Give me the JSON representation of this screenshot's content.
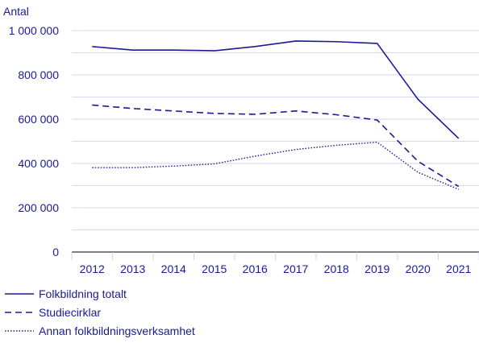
{
  "chart_data": {
    "type": "line",
    "ylabel": "Antal",
    "categories": [
      "2012",
      "2013",
      "2014",
      "2015",
      "2016",
      "2017",
      "2018",
      "2019",
      "2020",
      "2021"
    ],
    "y_ticks": [
      "0",
      "200 000",
      "400 000",
      "600 000",
      "800 000",
      "1 000 000"
    ],
    "y_tick_values": [
      0,
      200000,
      400000,
      600000,
      800000,
      1000000
    ],
    "ylim": [
      0,
      1000000
    ],
    "grid": "horizontal",
    "legend_position": "bottom-left",
    "line_color": "#1a1a96",
    "series": [
      {
        "name": "Folkbildning totalt",
        "style": "solid",
        "values": [
          928000,
          912000,
          912000,
          909000,
          928000,
          953000,
          950000,
          942000,
          690000,
          513000
        ]
      },
      {
        "name": "Studiecirklar",
        "style": "dashed",
        "values": [
          664000,
          648000,
          637000,
          626000,
          622000,
          637000,
          620000,
          596000,
          410000,
          296000
        ]
      },
      {
        "name": "Annan folkbildningsverksamhet",
        "style": "dotted",
        "values": [
          381000,
          381000,
          388000,
          398000,
          433000,
          463000,
          482000,
          496000,
          360000,
          283000
        ]
      }
    ]
  }
}
